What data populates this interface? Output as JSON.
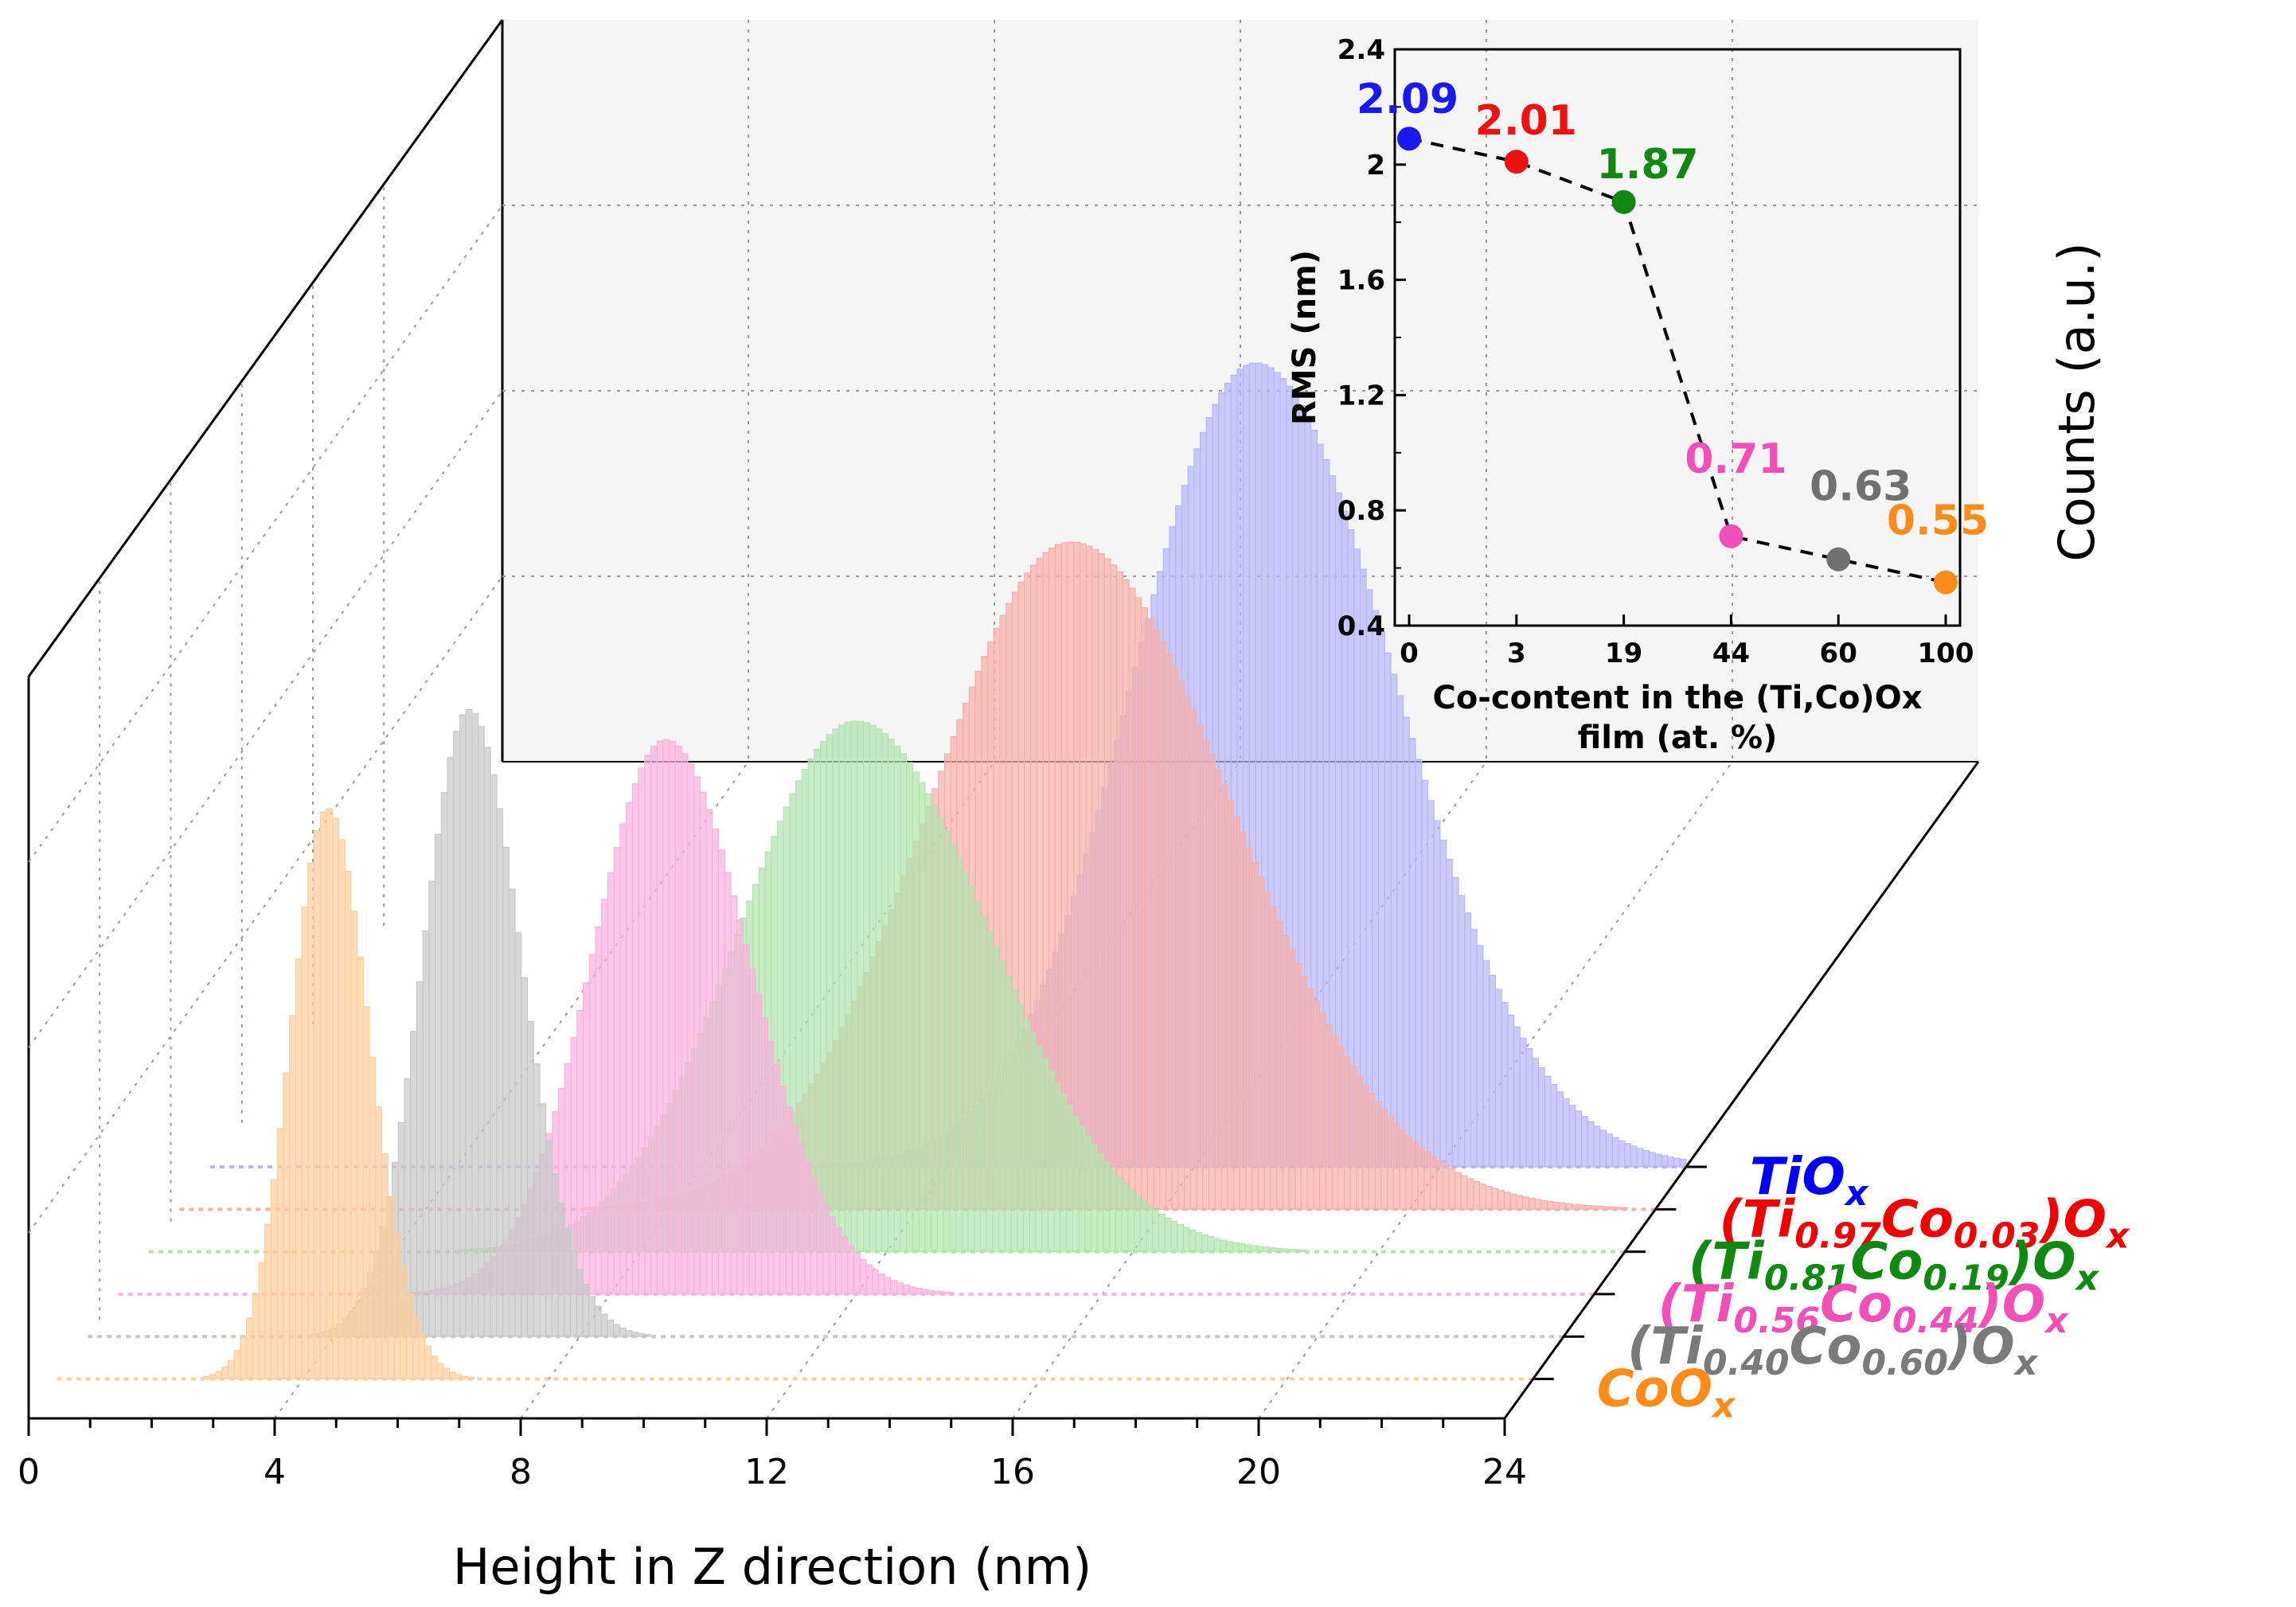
{
  "chart_data": [
    {
      "type": "bar",
      "title": "",
      "xlabel": "Height in Z direction (nm)",
      "zlabel": "Counts (a.u.)",
      "xlim": [
        0,
        24
      ],
      "x_ticks": [
        "0",
        "4",
        "8",
        "12",
        "16",
        "20",
        "24"
      ],
      "series": [
        {
          "name": "TiOx",
          "label_base": "TiO",
          "label_sub": "x",
          "label_parts": [
            {
              "t": "TiO",
              "sub": false
            },
            {
              "t": "x",
              "sub": true
            }
          ],
          "color": "#0000ee",
          "fill": "#b7b7f7",
          "peak_x": 17.0,
          "sigma": 2.0,
          "relative_peak": 1.0
        },
        {
          "name": "(Ti0.97Co0.03)Ox",
          "label_parts": [
            {
              "t": "(Ti",
              "sub": false
            },
            {
              "t": "0.97",
              "sub": true
            },
            {
              "t": "Co",
              "sub": false
            },
            {
              "t": "0.03",
              "sub": true
            },
            {
              "t": ")O",
              "sub": false
            },
            {
              "t": "x",
              "sub": true
            }
          ],
          "color": "#ee0000",
          "fill": "#f6b0ab",
          "peak_x": 14.5,
          "sigma": 2.3,
          "relative_peak": 0.83
        },
        {
          "name": "(Ti0.81Co0.19)Ox",
          "label_parts": [
            {
              "t": "(Ti",
              "sub": false
            },
            {
              "t": "0.81",
              "sub": true
            },
            {
              "t": "Co",
              "sub": false
            },
            {
              "t": "0.19",
              "sub": true
            },
            {
              "t": ")O",
              "sub": false
            },
            {
              "t": "x",
              "sub": true
            }
          ],
          "color": "#118811",
          "fill": "#b3e3ae",
          "peak_x": 11.5,
          "sigma": 1.9,
          "relative_peak": 0.66
        },
        {
          "name": "(Ti0.56Co0.44)Ox",
          "label_parts": [
            {
              "t": "(Ti",
              "sub": false
            },
            {
              "t": "0.56",
              "sub": true
            },
            {
              "t": "Co",
              "sub": false
            },
            {
              "t": "0.44",
              "sub": true
            },
            {
              "t": ")O",
              "sub": false
            },
            {
              "t": "x",
              "sub": true
            }
          ],
          "color": "#f050b8",
          "fill": "#f8b3dc",
          "peak_x": 8.9,
          "sigma": 1.2,
          "relative_peak": 0.69
        },
        {
          "name": "(Ti0.40Co0.60)Ox",
          "label_parts": [
            {
              "t": "(Ti",
              "sub": false
            },
            {
              "t": "0.40",
              "sub": true
            },
            {
              "t": "Co",
              "sub": false
            },
            {
              "t": "0.60",
              "sub": true
            },
            {
              "t": ")O",
              "sub": false
            },
            {
              "t": "x",
              "sub": true
            }
          ],
          "color": "#7a7a7a",
          "fill": "#c8c8c8",
          "peak_x": 6.2,
          "sigma": 0.75,
          "relative_peak": 0.78
        },
        {
          "name": "CoOx",
          "label_parts": [
            {
              "t": "CoO",
              "sub": false
            },
            {
              "t": "x",
              "sub": true
            }
          ],
          "color": "#ff8c1a",
          "fill": "#fdcf9c",
          "peak_x": 4.4,
          "sigma": 0.6,
          "relative_peak": 0.71
        }
      ]
    },
    {
      "type": "line",
      "title": "",
      "xlabel": "Co-content in the (Ti,Co)Ox film (at. %)",
      "xlabel_lines": [
        "Co-content in the (Ti,Co)Ox",
        "film (at. %)"
      ],
      "ylabel": "RMS (nm)",
      "categories": [
        "0",
        "3",
        "19",
        "44",
        "60",
        "100"
      ],
      "values": [
        2.09,
        2.01,
        1.87,
        0.71,
        0.63,
        0.55
      ],
      "value_labels": [
        "2.09",
        "2.01",
        "1.87",
        "0.71",
        "0.63",
        "0.55"
      ],
      "point_colors": [
        "#1a1aee",
        "#ee1111",
        "#118811",
        "#f050b8",
        "#707070",
        "#ff8c1a"
      ],
      "ylim": [
        0.4,
        2.4
      ],
      "y_ticks": [
        "0.4",
        "0.8",
        "1.2",
        "1.6",
        "2",
        "2.4"
      ],
      "line_style": "dashed"
    }
  ]
}
